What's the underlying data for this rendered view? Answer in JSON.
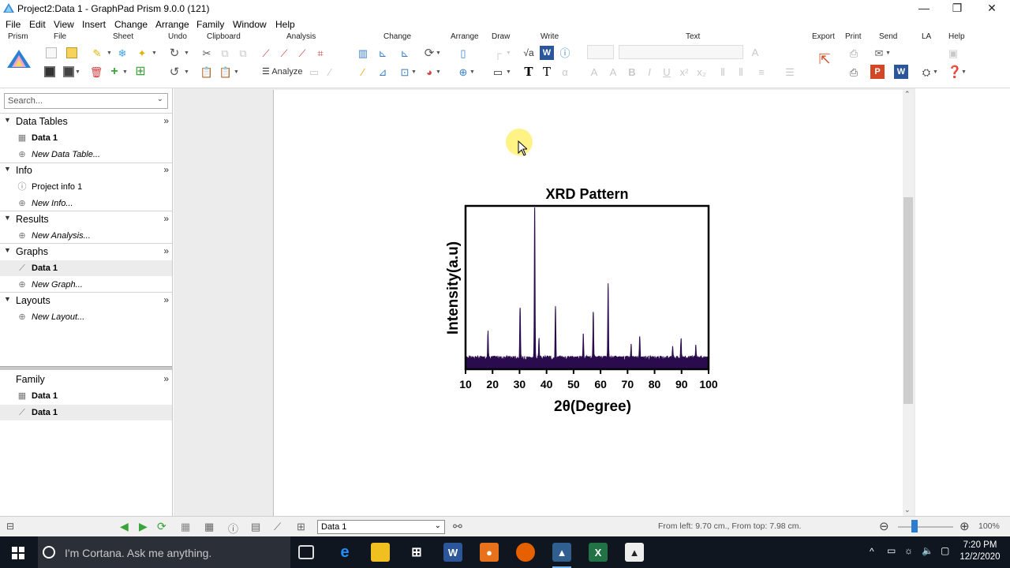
{
  "window": {
    "title": "Project2:Data 1 - GraphPad Prism 9.0.0 (121)",
    "minimize": "—",
    "restore": "❐",
    "close": "✕"
  },
  "menu": [
    "File",
    "Edit",
    "View",
    "Insert",
    "Change",
    "Arrange",
    "Family",
    "Window",
    "Help"
  ],
  "toolbar": {
    "groups": [
      "Prism",
      "File",
      "Sheet",
      "Undo",
      "Clipboard",
      "Analysis",
      "Change",
      "Arrange",
      "Draw",
      "Write",
      "Text",
      "Export",
      "Print",
      "Send",
      "LA",
      "Help"
    ],
    "analyze_label": "Analyze"
  },
  "navigator": {
    "search_placeholder": "Search...",
    "sections": [
      {
        "title": "Data Tables",
        "items": [
          {
            "label": "Data 1",
            "style": "bold"
          },
          {
            "label": "New Data Table...",
            "style": "italic"
          }
        ]
      },
      {
        "title": "Info",
        "items": [
          {
            "label": "Project info 1",
            "style": "normal"
          },
          {
            "label": "New Info...",
            "style": "italic"
          }
        ]
      },
      {
        "title": "Results",
        "items": [
          {
            "label": "New Analysis...",
            "style": "italic"
          }
        ]
      },
      {
        "title": "Graphs",
        "items": [
          {
            "label": "Data 1",
            "style": "bold"
          },
          {
            "label": "New Graph...",
            "style": "italic"
          }
        ]
      },
      {
        "title": "Layouts",
        "items": [
          {
            "label": "New Layout...",
            "style": "italic"
          }
        ]
      }
    ],
    "family": {
      "title": "Family",
      "items": [
        {
          "label": "Data 1"
        },
        {
          "label": "Data 1"
        }
      ]
    }
  },
  "chart_data": {
    "type": "line",
    "title": "XRD Pattern",
    "xlabel": "2θ(Degree)",
    "ylabel": "Intensity(a.u)",
    "xlim": [
      10,
      100
    ],
    "ylim": [
      0,
      100
    ],
    "xticks": [
      10,
      20,
      30,
      40,
      50,
      60,
      70,
      80,
      90,
      100
    ],
    "color": "#2a0b4d",
    "baseline": 5,
    "peaks": [
      {
        "x": 18.3,
        "y": 17
      },
      {
        "x": 30.2,
        "y": 33
      },
      {
        "x": 35.6,
        "y": 93
      },
      {
        "x": 37.2,
        "y": 12
      },
      {
        "x": 43.3,
        "y": 32
      },
      {
        "x": 53.6,
        "y": 15
      },
      {
        "x": 57.3,
        "y": 30
      },
      {
        "x": 62.8,
        "y": 45
      },
      {
        "x": 71.3,
        "y": 8
      },
      {
        "x": 74.5,
        "y": 13
      },
      {
        "x": 86.7,
        "y": 8
      },
      {
        "x": 89.8,
        "y": 13
      },
      {
        "x": 95.3,
        "y": 8
      }
    ]
  },
  "status": {
    "sheet": "Data 1",
    "position": "From left: 9.70 cm., From top: 7.98 cm.",
    "zoom": "100%"
  },
  "taskbar": {
    "cortana": "I'm Cortana. Ask me anything.",
    "time": "7:20 PM",
    "date": "12/2/2020"
  },
  "colors": {
    "accent": "#0078d7",
    "nav_selected": "#ececec",
    "workspace": "#ececec"
  }
}
